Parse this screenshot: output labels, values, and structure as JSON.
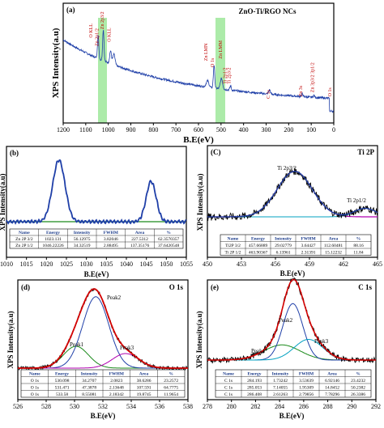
{
  "colors": {
    "data": "#1f3fa8",
    "fit": "#d40000",
    "green": "#1a8a1a",
    "magenta": "#b000b0",
    "cyan": "#00a0c0",
    "highlight": "#9ee89a"
  },
  "chart_data": [
    {
      "id": "a",
      "type": "line",
      "panel": "(a)",
      "title": "ZnO-Ti/RGO NCs",
      "xlabel": "B.E(eV)",
      "ylabel": "XPS Intensity(a.u)",
      "xlim": [
        1200,
        0
      ],
      "xticks": [
        1200,
        1100,
        1000,
        900,
        800,
        700,
        600,
        500,
        400,
        300,
        200,
        100,
        0
      ],
      "annotations": [
        {
          "x": 1070,
          "y": 0.78,
          "label": "O KLL"
        },
        {
          "x": 1044,
          "y": 0.7,
          "label": "Zn 2p1/2"
        },
        {
          "x": 1020,
          "y": 0.86,
          "label": "Zn 2p3/2"
        },
        {
          "x": 990,
          "y": 0.74,
          "label": "O KLL"
        },
        {
          "x": 560,
          "y": 0.56,
          "label": "Zn LMN"
        },
        {
          "x": 531,
          "y": 0.5,
          "label": "O 1s"
        },
        {
          "x": 495,
          "y": 0.58,
          "label": "Zn LMM"
        },
        {
          "x": 476,
          "y": 0.34,
          "label": "Ti 2p1/2"
        },
        {
          "x": 458,
          "y": 0.34,
          "label": "Ti 2p3/2"
        },
        {
          "x": 284,
          "y": 0.2,
          "label": "C 1s"
        },
        {
          "x": 140,
          "y": 0.22,
          "label": "Zn 3s"
        },
        {
          "x": 88,
          "y": 0.26,
          "label": "Zn 3p3/2 3p1/2"
        },
        {
          "x": 10,
          "y": 0.22,
          "label": "O 1s"
        }
      ]
    },
    {
      "id": "b",
      "type": "line",
      "panel": "(b)",
      "xlabel": "B.E(eV)",
      "ylabel": "XPS Intensity(a.u)",
      "xlim": [
        1010,
        1055
      ],
      "xticks": [
        1010,
        1015,
        1020,
        1025,
        1030,
        1035,
        1040,
        1045,
        1050,
        1055
      ],
      "peaks": [
        {
          "center": 1023.1,
          "fwhm": 3.82
        },
        {
          "center": 1046.2,
          "fwhm": 2.9
        }
      ],
      "table": {
        "headers": [
          "Name",
          "Energy",
          "Intensity",
          "FWHM",
          "Area",
          "%"
        ],
        "rows": [
          [
            "Zn 2P 3/2",
            "1023.131",
            "56.12975",
            "3.82046",
            "227.5312",
            "62.3570357"
          ],
          [
            "Zn 2P 1/2",
            "1046.22226",
            "34.32519",
            "2.88495",
            "137.35176",
            "37.6420548"
          ]
        ]
      }
    },
    {
      "id": "c",
      "type": "line",
      "panel": "(C)",
      "title": "Ti 2P",
      "xlabel": "B.E(eV)",
      "ylabel": "XPS Intensity(a.u)",
      "xlim": [
        450,
        465
      ],
      "xticks": [
        450,
        453,
        456,
        459,
        462,
        465
      ],
      "peaks": [
        {
          "center": 457.7,
          "label": "Ti 2p3/2"
        },
        {
          "center": 463.9,
          "label": "Ti 2p1/2"
        }
      ],
      "table": {
        "headers": [
          "Name",
          "Energy",
          "Intensity",
          "FWHM",
          "Area",
          "%"
        ],
        "rows": [
          [
            "Ti2P 3/2",
            "457.66889",
            "29.02779",
            "3.64427",
            "112.60481",
            "88.16"
          ],
          [
            "Ti 2P 1/2",
            "463.90367",
            "6.13961",
            "2.31391",
            "15.12232",
            "11.84"
          ]
        ]
      }
    },
    {
      "id": "d",
      "type": "line",
      "panel": "(d)",
      "title": "O 1s",
      "xlabel": "B.E(eV)",
      "ylabel": "XPS Intensity(a.u)",
      "xlim": [
        526,
        538
      ],
      "xticks": [
        526,
        528,
        530,
        532,
        534,
        536,
        538
      ],
      "peaks": [
        {
          "center": 530.1,
          "label": "Peak1"
        },
        {
          "center": 531.5,
          "label": "Peak2"
        },
        {
          "center": 533.6,
          "label": "Peak3"
        }
      ],
      "table": {
        "headers": [
          "Name",
          "Energy",
          "Intensity",
          "FWHM",
          "Area",
          "%"
        ],
        "rows": [
          [
            "O 1s",
            "530.098",
            "34.2707",
            "2.0823",
            "38.6286",
            "23.2572"
          ],
          [
            "O 1s",
            "531.471",
            "47.3878",
            "2.13648",
            "107.591",
            "64.7775"
          ],
          [
            "O 1s",
            "533.58",
            "8.55081",
            "2.18342",
            "19.8745",
            "11.9654"
          ]
        ]
      }
    },
    {
      "id": "e",
      "type": "line",
      "panel": "(e)",
      "title": "C 1s",
      "xlabel": "B.E(eV)",
      "ylabel": "XPS Intensity(a.u)",
      "xlim": [
        278,
        292
      ],
      "xticks": [
        278,
        280,
        282,
        284,
        286,
        288,
        290,
        292
      ],
      "peaks": [
        {
          "center": 284.2,
          "label": "Peak1"
        },
        {
          "center": 285.1,
          "label": "Peak2"
        },
        {
          "center": 286.4,
          "label": "Peak3"
        }
      ],
      "table": {
        "headers": [
          "Name",
          "Energy",
          "Intensity",
          "FWHM",
          "Area",
          "%"
        ],
        "rows": [
          [
            "C 1s",
            "284.193",
            "1.73242",
            "3.53639",
            "6.92146",
            "23.4232"
          ],
          [
            "C 1s",
            "285.053",
            "7.14055",
            "1.95309",
            "14.8452",
            "50.2382"
          ],
          [
            "C 1s",
            "286.408",
            "2.61263",
            "2.79856",
            "7.78296",
            "26.3386"
          ]
        ]
      }
    }
  ]
}
